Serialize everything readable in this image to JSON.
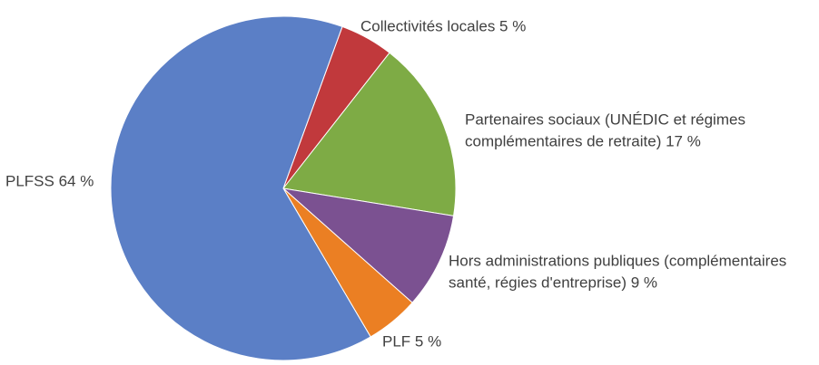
{
  "chart_data": {
    "type": "pie",
    "labels": [
      [
        "Collectivités locales 5 %"
      ],
      [
        "Partenaires sociaux (UNÉDIC et régimes",
        "complémentaires de retraite) 17 %"
      ],
      [
        "Hors administrations publiques (complémentaires",
        "santé, régies d'entreprise) 9 %"
      ],
      [
        "PLF 5 %"
      ],
      [
        "PLFSS 64 %"
      ]
    ],
    "values": [
      5,
      17,
      9,
      5,
      64
    ],
    "colors": [
      "#c1393c",
      "#7eab45",
      "#7b5191",
      "#eb7f23",
      "#5b7fc6"
    ]
  }
}
